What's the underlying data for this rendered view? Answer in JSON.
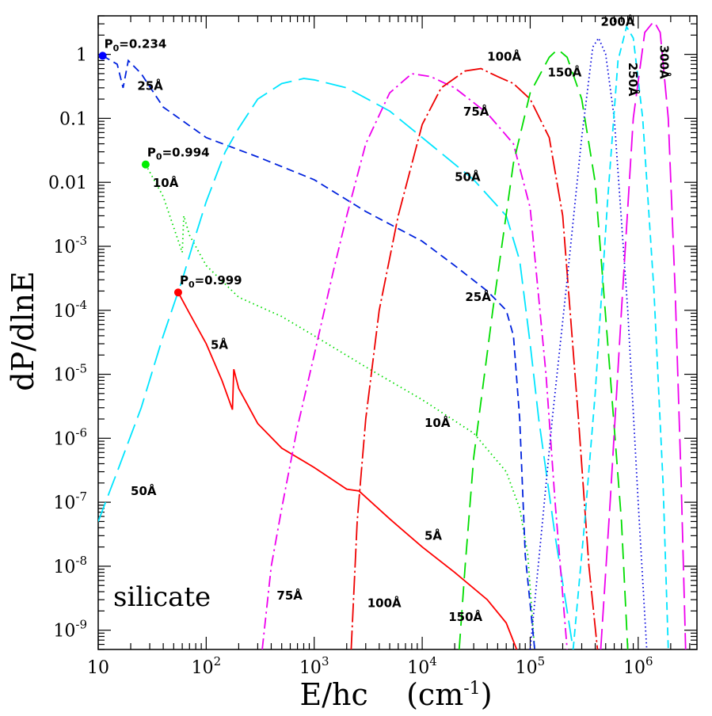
{
  "chart_data": {
    "type": "line",
    "xlabel": "E/hc    (cm",
    "xlabel_exp": "-1",
    "xlabel_close": ")",
    "ylabel": "dP/dlnE",
    "x_scale": "log",
    "y_scale": "log",
    "xlim": [
      10,
      3500000
    ],
    "ylim": [
      5e-10,
      4
    ],
    "grid": false,
    "x_ticks": [
      {
        "value": 10,
        "base": "10",
        "exp": ""
      },
      {
        "value": 100,
        "base": "10",
        "exp": "2"
      },
      {
        "value": 1000,
        "base": "10",
        "exp": "3"
      },
      {
        "value": 10000,
        "base": "10",
        "exp": "4"
      },
      {
        "value": 100000,
        "base": "10",
        "exp": "5"
      },
      {
        "value": 1000000,
        "base": "10",
        "exp": "6"
      }
    ],
    "y_ticks": [
      {
        "value": 1,
        "base": "1",
        "exp": ""
      },
      {
        "value": 0.1,
        "base": "0.1",
        "exp": ""
      },
      {
        "value": 0.01,
        "base": "0.01",
        "exp": ""
      },
      {
        "value": 0.001,
        "base": "10",
        "exp": "-3"
      },
      {
        "value": 0.0001,
        "base": "10",
        "exp": "-4"
      },
      {
        "value": 1e-05,
        "base": "10",
        "exp": "-5"
      },
      {
        "value": 1e-06,
        "base": "10",
        "exp": "-6"
      },
      {
        "value": 1e-07,
        "base": "10",
        "exp": "-7"
      },
      {
        "value": 1e-08,
        "base": "10",
        "exp": "-8"
      },
      {
        "value": 1e-09,
        "base": "10",
        "exp": "-9"
      }
    ],
    "annotation": "silicate",
    "series": [
      {
        "name": "5Å",
        "color": "#ff0000",
        "dash": "solid",
        "points": [
          [
            55,
            0.00019
          ],
          [
            70,
            9e-05
          ],
          [
            100,
            3e-05
          ],
          [
            140,
            8e-06
          ],
          [
            175,
            2.8e-06
          ],
          [
            180,
            1.2e-05
          ],
          [
            200,
            6e-06
          ],
          [
            300,
            1.7e-06
          ],
          [
            500,
            7e-07
          ],
          [
            1000,
            3.5e-07
          ],
          [
            2000,
            1.6e-07
          ],
          [
            2600,
            1.5e-07
          ],
          [
            5000,
            5.5e-08
          ],
          [
            10000,
            2e-08
          ],
          [
            20000,
            8e-09
          ],
          [
            40000,
            3e-09
          ],
          [
            60000,
            1.3e-09
          ],
          [
            75000,
            5e-10
          ]
        ]
      },
      {
        "name": "10Å",
        "color": "#00dd00",
        "dash": "1.5 4",
        "points": [
          [
            27.5,
            0.019
          ],
          [
            40,
            0.006
          ],
          [
            60,
            0.0008
          ],
          [
            62,
            0.003
          ],
          [
            70,
            0.0015
          ],
          [
            100,
            0.0005
          ],
          [
            200,
            0.00016
          ],
          [
            500,
            8e-05
          ],
          [
            1000,
            4e-05
          ],
          [
            3000,
            1.3e-05
          ],
          [
            10000,
            4e-06
          ],
          [
            30000,
            1.2e-06
          ],
          [
            60000,
            3e-07
          ],
          [
            80000,
            8e-08
          ],
          [
            95000,
            1.5e-08
          ],
          [
            110000,
            5e-10
          ]
        ]
      },
      {
        "name": "25Å",
        "color": "#0022dd",
        "dash": "10 6",
        "points": [
          [
            11,
            0.95
          ],
          [
            15,
            0.7
          ],
          [
            17,
            0.3
          ],
          [
            19,
            0.8
          ],
          [
            25,
            0.5
          ],
          [
            40,
            0.15
          ],
          [
            100,
            0.05
          ],
          [
            300,
            0.025
          ],
          [
            1000,
            0.011
          ],
          [
            3000,
            0.0035
          ],
          [
            10000,
            0.0012
          ],
          [
            20000,
            0.0005
          ],
          [
            40000,
            0.0002
          ],
          [
            60000,
            0.0001
          ],
          [
            70000,
            4e-05
          ],
          [
            80000,
            2e-06
          ],
          [
            90000,
            1.5e-08
          ],
          [
            110000,
            5e-10
          ]
        ]
      },
      {
        "name": "50Å",
        "color": "#00e5ff",
        "dash": "26 9",
        "points": [
          [
            10,
            5e-08
          ],
          [
            15,
            3e-07
          ],
          [
            25,
            3e-06
          ],
          [
            40,
            4e-05
          ],
          [
            60,
            0.0003
          ],
          [
            80,
            0.0015
          ],
          [
            100,
            0.005
          ],
          [
            150,
            0.03
          ],
          [
            200,
            0.07
          ],
          [
            300,
            0.2
          ],
          [
            500,
            0.35
          ],
          [
            800,
            0.42
          ],
          [
            1000,
            0.4
          ],
          [
            2000,
            0.3
          ],
          [
            5000,
            0.13
          ],
          [
            10000,
            0.05
          ],
          [
            30000,
            0.011
          ],
          [
            60000,
            0.003
          ],
          [
            80000,
            0.0006
          ],
          [
            100000,
            3e-05
          ],
          [
            120000,
            2e-06
          ],
          [
            170000,
            3e-08
          ],
          [
            220000,
            2e-09
          ],
          [
            250000,
            5e-10
          ]
        ]
      },
      {
        "name": "75Å",
        "color": "#ee00ee",
        "dash": "14 5 2.5 5",
        "points": [
          [
            330,
            5e-10
          ],
          [
            400,
            1e-08
          ],
          [
            500,
            8e-08
          ],
          [
            700,
            1.5e-06
          ],
          [
            1000,
            2e-05
          ],
          [
            1500,
            0.0004
          ],
          [
            2000,
            0.003
          ],
          [
            3000,
            0.04
          ],
          [
            5000,
            0.25
          ],
          [
            8000,
            0.5
          ],
          [
            12000,
            0.45
          ],
          [
            20000,
            0.3
          ],
          [
            40000,
            0.12
          ],
          [
            70000,
            0.04
          ],
          [
            100000,
            0.004
          ],
          [
            140000,
            1e-05
          ],
          [
            170000,
            1e-07
          ],
          [
            220000,
            5e-10
          ]
        ]
      },
      {
        "name": "100Å",
        "color": "#ee0000",
        "dash": "24 4 2.5 4",
        "points": [
          [
            2200,
            5e-10
          ],
          [
            2500,
            5e-08
          ],
          [
            3000,
            2e-06
          ],
          [
            4000,
            0.0001
          ],
          [
            6000,
            0.003
          ],
          [
            10000,
            0.08
          ],
          [
            15000,
            0.3
          ],
          [
            25000,
            0.55
          ],
          [
            35000,
            0.6
          ],
          [
            50000,
            0.45
          ],
          [
            70000,
            0.35
          ],
          [
            100000,
            0.2
          ],
          [
            150000,
            0.05
          ],
          [
            200000,
            0.003
          ],
          [
            280000,
            2e-06
          ],
          [
            350000,
            1e-08
          ],
          [
            420000,
            5e-10
          ]
        ]
      },
      {
        "name": "150Å",
        "color": "#00dd00",
        "dash": "20 10",
        "points": [
          [
            22000,
            5e-10
          ],
          [
            25000,
            1e-08
          ],
          [
            30000,
            5e-07
          ],
          [
            45000,
            0.0001
          ],
          [
            70000,
            0.02
          ],
          [
            100000,
            0.25
          ],
          [
            150000,
            0.9
          ],
          [
            180000,
            1.2
          ],
          [
            220000,
            0.9
          ],
          [
            300000,
            0.2
          ],
          [
            400000,
            0.01
          ],
          [
            550000,
            1e-05
          ],
          [
            700000,
            5e-08
          ],
          [
            800000,
            5e-10
          ]
        ]
      },
      {
        "name": "200Å",
        "color": "#0000dd",
        "dash": "1.5 3.5",
        "points": [
          [
            100000,
            5e-10
          ],
          [
            130000,
            5e-08
          ],
          [
            160000,
            2e-06
          ],
          [
            220000,
            0.0003
          ],
          [
            300000,
            0.05
          ],
          [
            380000,
            1.3
          ],
          [
            430000,
            1.8
          ],
          [
            500000,
            1.0
          ],
          [
            600000,
            0.1
          ],
          [
            800000,
            0.0001
          ],
          [
            1000000,
            1e-07
          ],
          [
            1200000,
            5e-10
          ]
        ]
      },
      {
        "name": "250Å",
        "color": "#00e5ff",
        "dash": "10 6",
        "points": [
          [
            250000,
            5e-10
          ],
          [
            320000,
            5e-08
          ],
          [
            400000,
            5e-06
          ],
          [
            520000,
            0.005
          ],
          [
            650000,
            0.8
          ],
          [
            780000,
            2.7
          ],
          [
            900000,
            1.8
          ],
          [
            1100000,
            0.1
          ],
          [
            1400000,
            0.0002
          ],
          [
            1700000,
            2e-07
          ],
          [
            1900000,
            5e-10
          ]
        ]
      },
      {
        "name": "300Å",
        "color": "#ee00ee",
        "dash": "26 9",
        "points": [
          [
            450000,
            5e-10
          ],
          [
            550000,
            1e-07
          ],
          [
            700000,
            0.0001
          ],
          [
            900000,
            0.1
          ],
          [
            1150000,
            2.2
          ],
          [
            1400000,
            3.3
          ],
          [
            1600000,
            2.2
          ],
          [
            1900000,
            0.1
          ],
          [
            2200000,
            0.0002
          ],
          [
            2500000,
            2e-07
          ],
          [
            2750000,
            5e-10
          ]
        ]
      }
    ],
    "start_markers": [
      {
        "label": "P",
        "sub": "0",
        "value": "=0.234",
        "x": 11,
        "y": 0.95,
        "color": "#0000ff"
      },
      {
        "label": "P",
        "sub": "0",
        "value": "=0.994",
        "x": 27.5,
        "y": 0.019,
        "color": "#00ee00"
      },
      {
        "label": "P",
        "sub": "0",
        "value": "=0.999",
        "x": 55,
        "y": 0.00019,
        "color": "#ff0000"
      }
    ],
    "curve_labels": [
      {
        "text": "25Å",
        "x": 23,
        "y": 0.28,
        "rotate": 0
      },
      {
        "text": "10Å",
        "x": 32,
        "y": 0.0085,
        "rotate": 0
      },
      {
        "text": "5Å",
        "x": 110,
        "y": 2.5e-05,
        "rotate": 0
      },
      {
        "text": "50Å",
        "x": 20,
        "y": 1.3e-07,
        "rotate": 0
      },
      {
        "text": "75Å",
        "x": 450,
        "y": 3e-09,
        "rotate": 0
      },
      {
        "text": "100Å",
        "x": 3100,
        "y": 2.3e-09,
        "rotate": 0
      },
      {
        "text": "150Å",
        "x": 17500,
        "y": 1.4e-09,
        "rotate": 0
      },
      {
        "text": "5Å",
        "x": 10500,
        "y": 2.6e-08,
        "rotate": 0
      },
      {
        "text": "10Å",
        "x": 10500,
        "y": 1.5e-06,
        "rotate": 0
      },
      {
        "text": "25Å",
        "x": 25000,
        "y": 0.00014,
        "rotate": 0
      },
      {
        "text": "50Å",
        "x": 20000,
        "y": 0.0105,
        "rotate": 0
      },
      {
        "text": "75Å",
        "x": 24000,
        "y": 0.11,
        "rotate": 0
      },
      {
        "text": "100Å",
        "x": 40000,
        "y": 0.8,
        "rotate": 0
      },
      {
        "text": "150Å",
        "x": 145000,
        "y": 0.45,
        "rotate": 0
      },
      {
        "text": "200Å",
        "x": 450000,
        "y": 2.8,
        "rotate": 0
      },
      {
        "text": "250Å",
        "x": 820000,
        "y": 0.75,
        "rotate": 90
      },
      {
        "text": "300Å",
        "x": 1600000,
        "y": 1.4,
        "rotate": 90
      }
    ]
  }
}
